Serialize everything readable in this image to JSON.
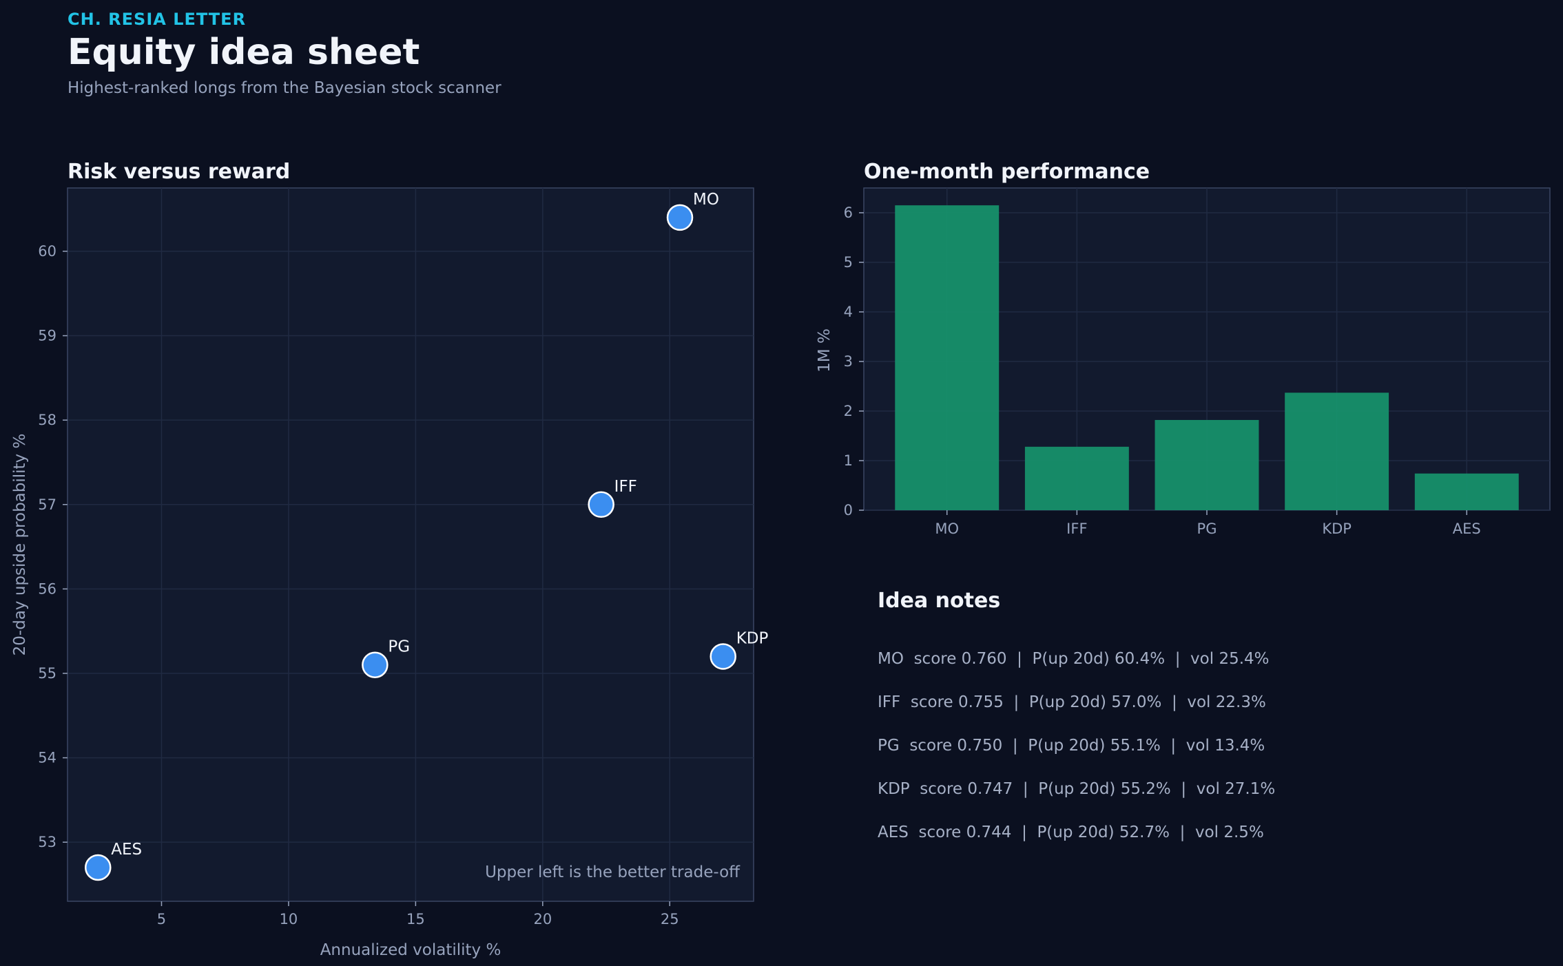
{
  "header": {
    "eyebrow": "CH. RESIA LETTER",
    "title": "Equity idea sheet",
    "subtitle": "Highest-ranked longs from the Bayesian stock scanner"
  },
  "colors": {
    "background": "#0b1020",
    "panel": "#121a2e",
    "accent": "#22c3e6",
    "point": "#3b8ef0",
    "bar": "#17946c"
  },
  "chart_data": [
    {
      "type": "scatter",
      "title": "Risk versus reward",
      "xlabel": "Annualized volatility %",
      "ylabel": "20-day upside probability %",
      "xlim": [
        1.3,
        28.3
      ],
      "ylim": [
        52.3,
        60.75
      ],
      "xticks": [
        5,
        10,
        15,
        20,
        25
      ],
      "yticks": [
        53,
        54,
        55,
        56,
        57,
        58,
        59,
        60
      ],
      "grid": true,
      "annotation": "Upper left is the better trade-off",
      "points": [
        {
          "label": "MO",
          "x": 25.4,
          "y": 60.4
        },
        {
          "label": "IFF",
          "x": 22.3,
          "y": 57.0
        },
        {
          "label": "PG",
          "x": 13.4,
          "y": 55.1
        },
        {
          "label": "KDP",
          "x": 27.1,
          "y": 55.2
        },
        {
          "label": "AES",
          "x": 2.5,
          "y": 52.7
        }
      ]
    },
    {
      "type": "bar",
      "title": "One-month performance",
      "xlabel": "",
      "ylabel": "1M %",
      "ylim": [
        0,
        6.5
      ],
      "yticks": [
        0,
        1,
        2,
        3,
        4,
        5,
        6
      ],
      "grid": true,
      "categories": [
        "MO",
        "IFF",
        "PG",
        "KDP",
        "AES"
      ],
      "values": [
        6.15,
        1.28,
        1.82,
        2.37,
        0.74
      ]
    }
  ],
  "notes": {
    "title": "Idea notes",
    "items": [
      "MO  score 0.760  |  P(up 20d) 60.4%  |  vol 25.4%",
      "IFF  score 0.755  |  P(up 20d) 57.0%  |  vol 22.3%",
      "PG  score 0.750  |  P(up 20d) 55.1%  |  vol 13.4%",
      "KDP  score 0.747  |  P(up 20d) 55.2%  |  vol 27.1%",
      "AES  score 0.744  |  P(up 20d) 52.7%  |  vol 2.5%"
    ]
  }
}
